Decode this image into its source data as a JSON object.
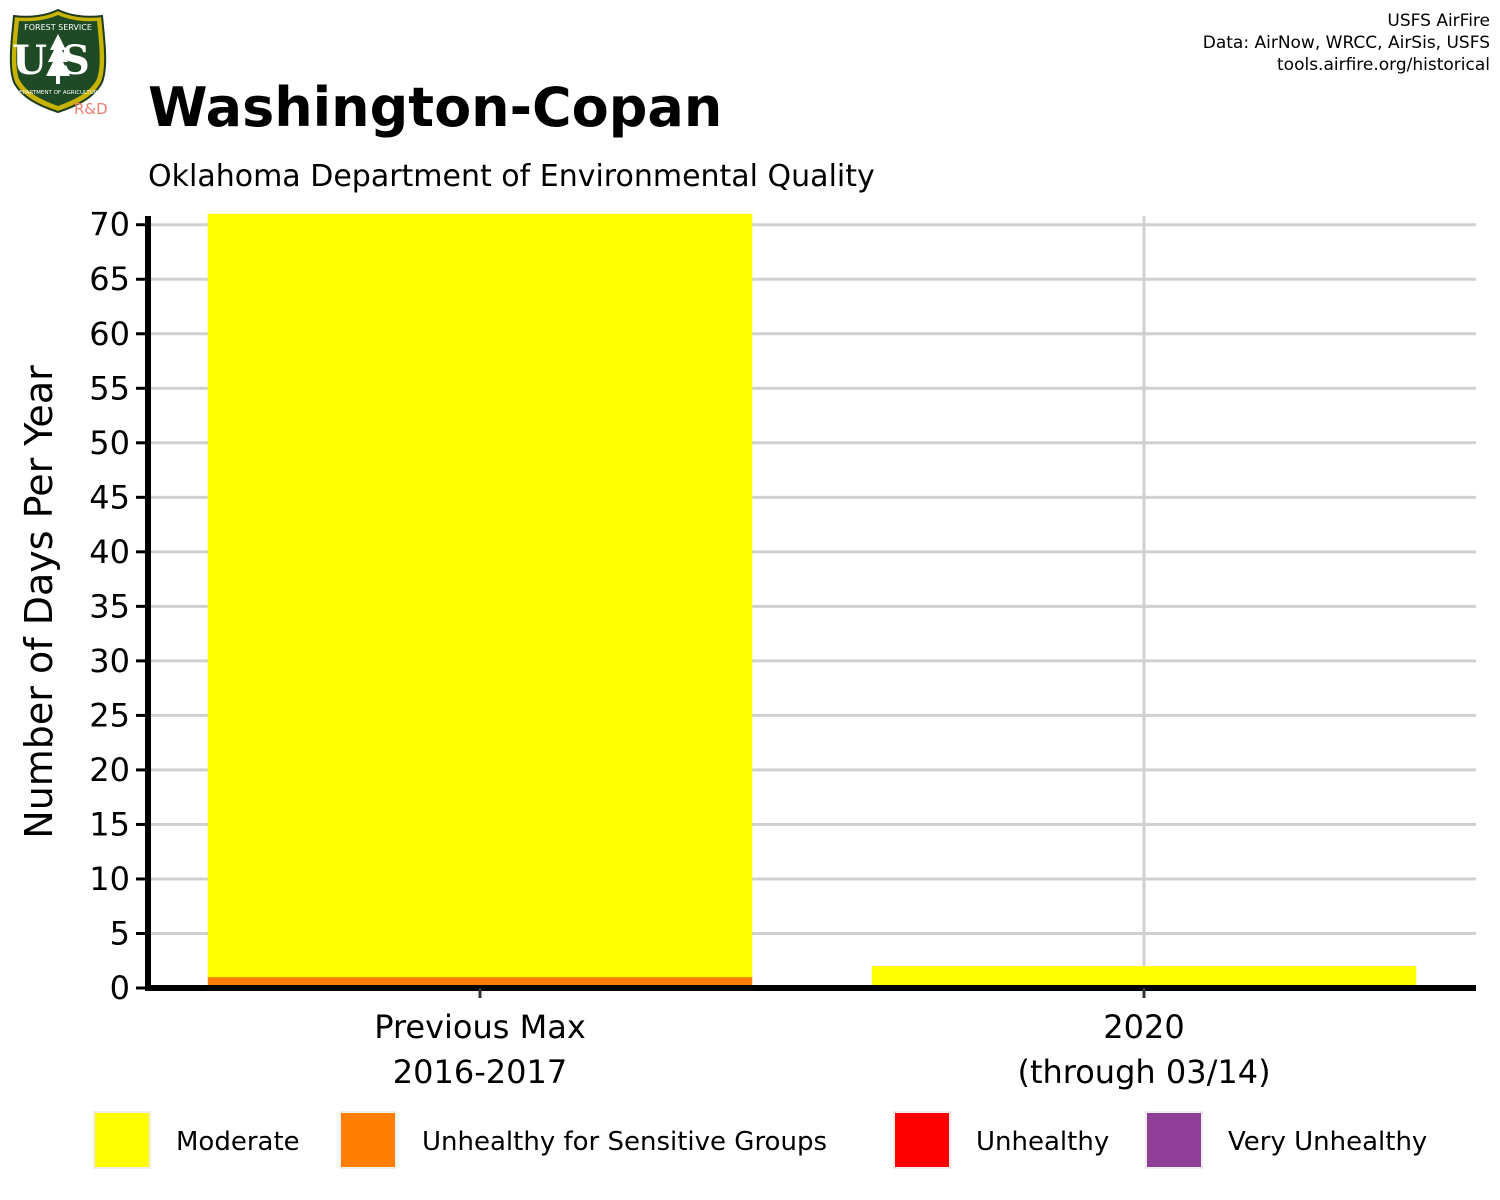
{
  "logo": {
    "top_text": "FOREST SERVICE",
    "letters": "US",
    "bottom_text": "DEPARTMENT OF AGRICULTURE",
    "badge": "R&D"
  },
  "credits": {
    "line1": "USFS AirFire",
    "line2": "Data: AirNow, WRCC, AirSis, USFS",
    "line3": "tools.airfire.org/historical"
  },
  "chart_data": {
    "type": "bar",
    "stacked": true,
    "title": "Washington-Copan",
    "subtitle": "Oklahoma Department of Environmental Quality",
    "xlabel": "",
    "ylabel": "Number of Days Per Year",
    "ylim": [
      0,
      70.8
    ],
    "yticks": [
      0,
      5,
      10,
      15,
      20,
      25,
      30,
      35,
      40,
      45,
      50,
      55,
      60,
      65,
      70
    ],
    "grid": true,
    "legend_position": "bottom",
    "categories": [
      {
        "line1": "Previous Max",
        "line2": "2016-2017"
      },
      {
        "line1": "2020",
        "line2": "(through 03/14)"
      }
    ],
    "series": [
      {
        "name": "Moderate",
        "color": "#ffff00",
        "values": [
          70,
          2
        ]
      },
      {
        "name": "Unhealthy for Sensitive Groups",
        "color": "#ff7e00",
        "values": [
          1,
          0
        ]
      },
      {
        "name": "Unhealthy",
        "color": "#ff0000",
        "values": [
          0,
          0
        ]
      },
      {
        "name": "Very Unhealthy",
        "color": "#8f3f97",
        "values": [
          0,
          0
        ]
      }
    ]
  }
}
